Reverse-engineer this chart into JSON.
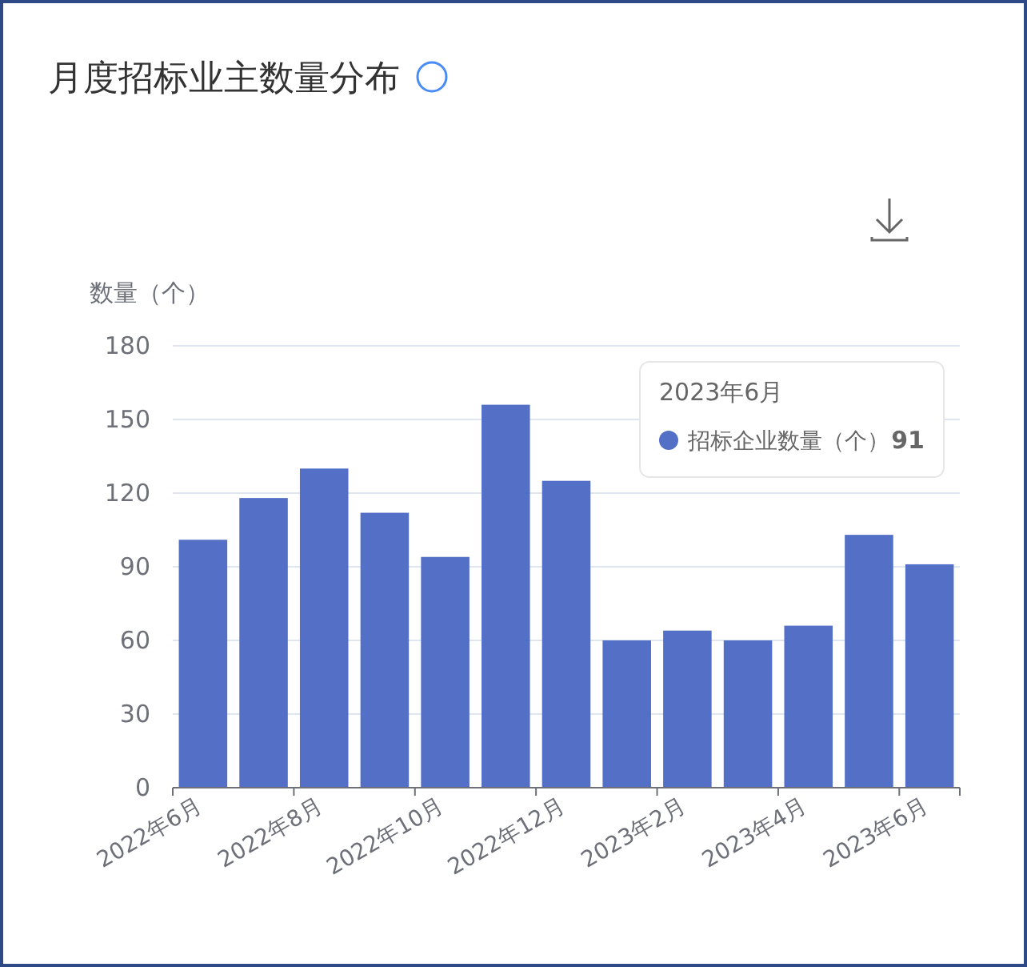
{
  "chart_data": {
    "type": "bar",
    "title": "月度招标业主数量分布",
    "ylabel": "数量（个）",
    "categories": [
      "2022年6月",
      null,
      "2022年8月",
      null,
      "2022年10月",
      null,
      "2022年12月",
      null,
      "2023年2月",
      null,
      "2023年4月",
      null,
      "2023年6月"
    ],
    "series": [
      {
        "name": "招标企业数量（个）",
        "color": "#5470c6",
        "values": [
          101,
          118,
          130,
          112,
          94,
          156,
          125,
          60,
          64,
          60,
          66,
          103,
          91
        ]
      }
    ],
    "ylim": [
      0,
      180
    ],
    "yticks": [
      0,
      30,
      60,
      90,
      120,
      150,
      180
    ],
    "grid": "y",
    "legend": "top right",
    "annotations": [
      "2023年6月",
      "91"
    ]
  }
}
